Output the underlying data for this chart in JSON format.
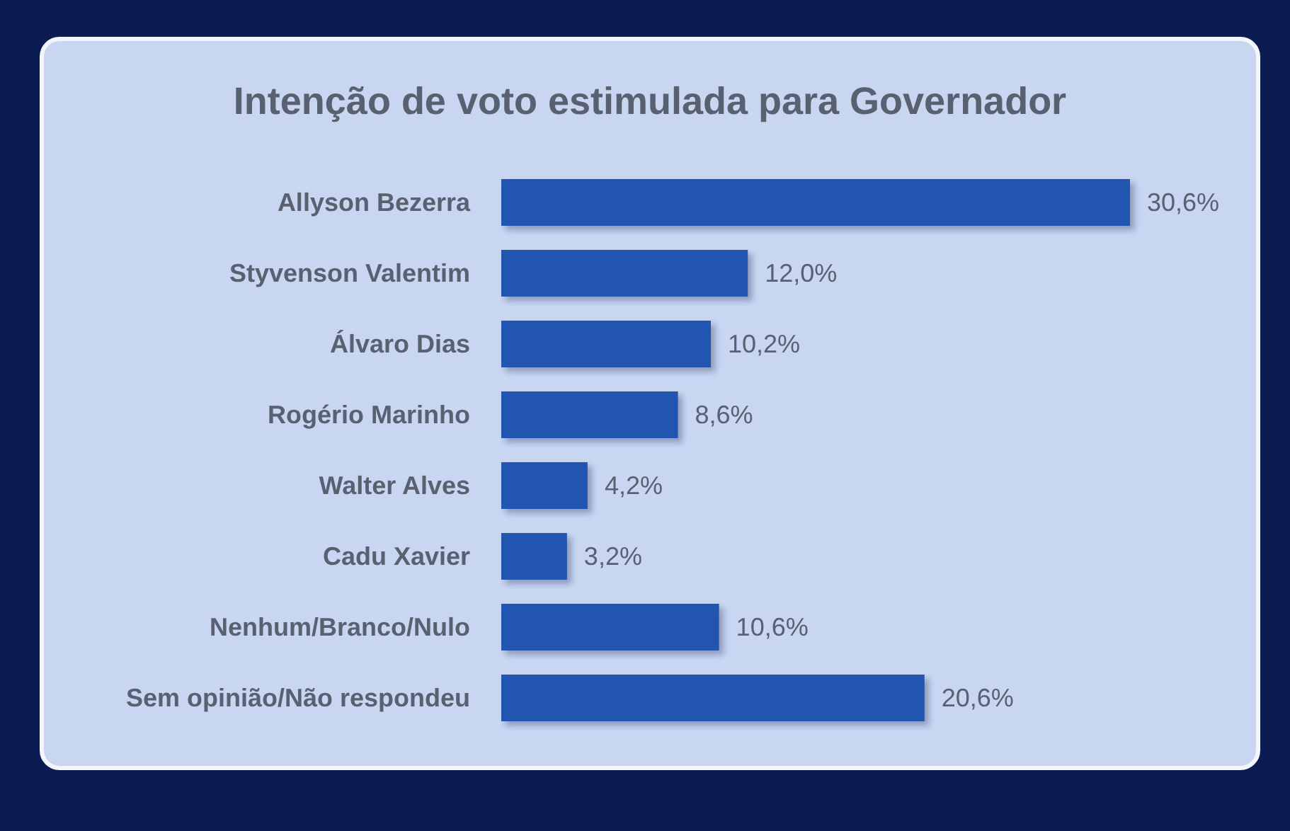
{
  "chart_data": {
    "type": "bar",
    "orientation": "horizontal",
    "title": "Intenção de voto estimulada para Governador",
    "categories": [
      "Allyson Bezerra",
      "Styvenson Valentim",
      "Álvaro Dias",
      "Rogério Marinho",
      "Walter Alves",
      "Cadu Xavier",
      "Nenhum/Branco/Nulo",
      "Sem opinião/Não respondeu"
    ],
    "values": [
      30.6,
      12.0,
      10.2,
      8.6,
      4.2,
      3.2,
      10.6,
      20.6
    ],
    "value_labels": [
      "30,6%",
      "12,0%",
      "10,2%",
      "8,6%",
      "4,2%",
      "3,2%",
      "10,6%",
      "20,6%"
    ],
    "color": "#2455b0",
    "grid": false,
    "tick_labels": "y"
  }
}
